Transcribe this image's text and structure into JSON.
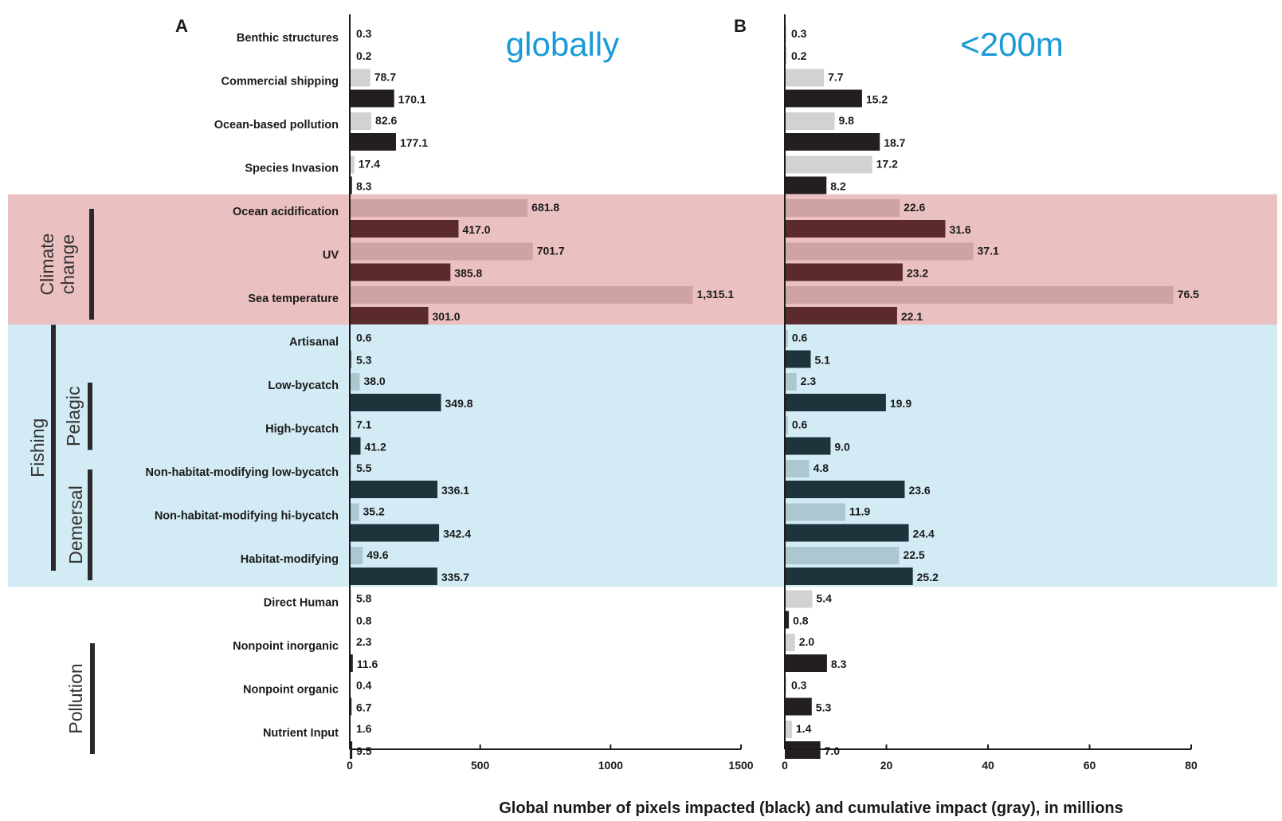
{
  "chart_data": {
    "type": "bar",
    "orientation": "horizontal",
    "xlabel": "Global number of pixels impacted (black) and cumulative impact (gray), in millions",
    "categories": [
      "Benthic structures",
      "Commercial shipping",
      "Ocean-based pollution",
      "Species Invasion",
      "Ocean acidification",
      "UV",
      "Sea temperature",
      "Artisanal",
      "Low-bycatch",
      "High-bycatch",
      "Non-habitat-modifying low-bycatch",
      "Non-habitat-modifying hi-bycatch",
      "Habitat-modifying",
      "Direct Human",
      "Nonpoint inorganic",
      "Nonpoint organic",
      "Nutrient Input"
    ],
    "category_groups": [
      {
        "label": "Climate change",
        "lines": [
          "Climate",
          "change"
        ],
        "categories": [
          "Ocean acidification",
          "UV",
          "Sea temperature"
        ],
        "background": "#ebc0c1"
      },
      {
        "label": "Fishing",
        "lines": [
          "Fishing"
        ],
        "categories": [
          "Artisanal",
          "Low-bycatch",
          "High-bycatch",
          "Non-habitat-modifying low-bycatch",
          "Non-habitat-modifying hi-bycatch",
          "Habitat-modifying"
        ],
        "background": "#d3ebf4"
      },
      {
        "label": "Pelagic",
        "lines": [
          "Pelagic"
        ],
        "categories": [
          "Low-bycatch",
          "High-bycatch"
        ]
      },
      {
        "label": "Demersal",
        "lines": [
          "Demersal"
        ],
        "categories": [
          "Non-habitat-modifying low-bycatch",
          "Non-habitat-modifying hi-bycatch",
          "Habitat-modifying"
        ]
      },
      {
        "label": "Pollution",
        "lines": [
          "Pollution"
        ],
        "categories": [
          "Nonpoint inorganic",
          "Nonpoint organic",
          "Nutrient Input"
        ]
      }
    ],
    "panels": [
      {
        "letter": "A",
        "annotation": "globally",
        "xlim": [
          0,
          1500
        ],
        "xticks": [
          0,
          500,
          1000,
          1500
        ],
        "series": [
          {
            "name": "cumulative impact (gray)",
            "values": [
              0.3,
              78.7,
              82.6,
              17.4,
              681.8,
              701.7,
              1315.1,
              0.6,
              38.0,
              7.1,
              5.5,
              35.2,
              49.6,
              5.8,
              2.3,
              0.4,
              1.6
            ],
            "labels": [
              "0.3",
              "78.7",
              "82.6",
              "17.4",
              "681.8",
              "701.7",
              "1,315.1",
              "0.6",
              "38.0",
              "7.1",
              "5.5",
              "35.2",
              "49.6",
              "5.8",
              "2.3",
              "0.4",
              "1.6"
            ]
          },
          {
            "name": "pixels impacted (black)",
            "values": [
              0.2,
              170.1,
              177.1,
              8.3,
              417.0,
              385.8,
              301.0,
              5.3,
              349.8,
              41.2,
              336.1,
              342.4,
              335.7,
              0.8,
              11.6,
              6.7,
              9.5
            ],
            "labels": [
              "0.2",
              "170.1",
              "177.1",
              "8.3",
              "417.0",
              "385.8",
              "301.0",
              "5.3",
              "349.8",
              "41.2",
              "336.1",
              "342.4",
              "335.7",
              "0.8",
              "11.6",
              "6.7",
              "9.5"
            ]
          }
        ]
      },
      {
        "letter": "B",
        "annotation": "<200m",
        "xlim": [
          0,
          80
        ],
        "xticks": [
          0,
          20,
          40,
          60,
          80
        ],
        "series": [
          {
            "name": "cumulative impact (gray)",
            "values": [
              0.3,
              7.7,
              9.8,
              17.2,
              22.6,
              37.1,
              76.5,
              0.6,
              2.3,
              0.6,
              4.8,
              11.9,
              22.5,
              5.4,
              2.0,
              0.3,
              1.4
            ],
            "labels": [
              "0.3",
              "7.7",
              "9.8",
              "17.2",
              "22.6",
              "37.1",
              "76.5",
              "0.6",
              "2.3",
              "0.6",
              "4.8",
              "11.9",
              "22.5",
              "5.4",
              "2.0",
              "0.3",
              "1.4"
            ]
          },
          {
            "name": "pixels impacted (black)",
            "values": [
              0.2,
              15.2,
              18.7,
              8.2,
              31.6,
              23.2,
              22.1,
              5.1,
              19.9,
              9.0,
              23.6,
              24.4,
              25.2,
              0.8,
              8.3,
              5.3,
              7.0
            ],
            "labels": [
              "0.2",
              "15.2",
              "18.7",
              "8.2",
              "31.6",
              "23.2",
              "22.1",
              "5.1",
              "19.9",
              "9.0",
              "23.6",
              "24.4",
              "25.2",
              "0.8",
              "8.3",
              "5.3",
              "7.0"
            ]
          }
        ]
      }
    ],
    "colors": {
      "gray_bar": "#d2d2d2",
      "black_bar": "#231f20",
      "climate_gray_bar": "#cfa2a3",
      "climate_black_bar": "#5a2a2d",
      "fishing_gray_bar": "#acc7d0",
      "fishing_black_bar": "#1e333b",
      "climate_band": "#ebc0c1",
      "fishing_band": "#d3ebf4",
      "annotation": "#1a9ad6"
    },
    "grid": false,
    "legend": "none"
  }
}
